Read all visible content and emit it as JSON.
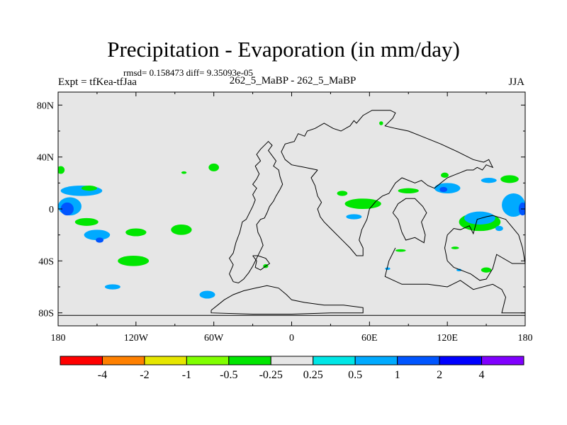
{
  "chart_data": {
    "type": "heatmap",
    "title": "Precipitation - Evaporation (in mm/day)",
    "stats_text": "rmsd= 0.158473 diff= 9.35093e-05",
    "experiment_text": "Expt = tfKea-tfJaa",
    "center_text": "262_5_MaBP - 262_5_MaBP",
    "season": "JJA",
    "xlim": [
      -180,
      180
    ],
    "ylim": [
      -90,
      90
    ],
    "x_ticks": [
      {
        "value": -180,
        "label": "180"
      },
      {
        "value": -120,
        "label": "120W"
      },
      {
        "value": -60,
        "label": "60W"
      },
      {
        "value": 0,
        "label": "0"
      },
      {
        "value": 60,
        "label": "60E"
      },
      {
        "value": 120,
        "label": "120E"
      },
      {
        "value": 180,
        "label": "180"
      }
    ],
    "y_ticks": [
      {
        "value": 80,
        "label": "80N"
      },
      {
        "value": 40,
        "label": "40N"
      },
      {
        "value": 0,
        "label": "0"
      },
      {
        "value": -40,
        "label": "40S"
      },
      {
        "value": -80,
        "label": "80S"
      }
    ],
    "colorbar": {
      "colors": [
        "#ff0000",
        "#ff8000",
        "#e6e600",
        "#80ff00",
        "#00e600",
        "#e6e6e6",
        "#00e6e6",
        "#00aaff",
        "#0055ff",
        "#0000ff",
        "#8000ff"
      ],
      "labels": [
        "-4",
        "-2",
        "-1",
        "-0.5",
        "-0.25",
        "0.25",
        "0.5",
        "1",
        "2",
        "4"
      ]
    },
    "background_color": "#e6e6e6",
    "anomaly_regions": [
      {
        "level": "-0.25",
        "lon": -178,
        "lat": 30,
        "rlon": 3,
        "rlat": 3
      },
      {
        "level": "0.5",
        "lon": -162,
        "lat": 14,
        "rlon": 16,
        "rlat": 4
      },
      {
        "level": "-0.25",
        "lon": -156,
        "lat": 16,
        "rlon": 6,
        "rlat": 2
      },
      {
        "level": "0.5",
        "lon": -171,
        "lat": 2,
        "rlon": 9,
        "rlat": 7
      },
      {
        "level": "1",
        "lon": -173,
        "lat": 0,
        "rlon": 5,
        "rlat": 5
      },
      {
        "level": "-0.25",
        "lon": -158,
        "lat": -10,
        "rlon": 9,
        "rlat": 3
      },
      {
        "level": "0.5",
        "lon": -150,
        "lat": -20,
        "rlon": 10,
        "rlat": 4
      },
      {
        "level": "1",
        "lon": -148,
        "lat": -24,
        "rlon": 3,
        "rlat": 2
      },
      {
        "level": "-0.25",
        "lon": -120,
        "lat": -18,
        "rlon": 8,
        "rlat": 3
      },
      {
        "level": "-0.25",
        "lon": -85,
        "lat": -16,
        "rlon": 8,
        "rlat": 4
      },
      {
        "level": "-0.25",
        "lon": -122,
        "lat": -40,
        "rlon": 12,
        "rlat": 4
      },
      {
        "level": "0.5",
        "lon": -138,
        "lat": -60,
        "rlon": 6,
        "rlat": 2
      },
      {
        "level": "0.5",
        "lon": -65,
        "lat": -66,
        "rlon": 6,
        "rlat": 3
      },
      {
        "level": "-0.25",
        "lon": -60,
        "lat": 32,
        "rlon": 4,
        "rlat": 3
      },
      {
        "level": "-0.25",
        "lon": -83,
        "lat": 28,
        "rlon": 2,
        "rlat": 1
      },
      {
        "level": "-0.25",
        "lon": -20,
        "lat": -44,
        "rlon": 2,
        "rlat": 1.5
      },
      {
        "level": "-0.25",
        "lon": 55,
        "lat": 4,
        "rlon": 14,
        "rlat": 4
      },
      {
        "level": "0.5",
        "lon": 48,
        "lat": -6,
        "rlon": 6,
        "rlat": 2
      },
      {
        "level": "-0.25",
        "lon": 39,
        "lat": 12,
        "rlon": 4,
        "rlat": 2
      },
      {
        "level": "-0.25",
        "lon": 90,
        "lat": 14,
        "rlon": 8,
        "rlat": 2
      },
      {
        "level": "0.5",
        "lon": 120,
        "lat": 16,
        "rlon": 10,
        "rlat": 4
      },
      {
        "level": "1",
        "lon": 117,
        "lat": 15,
        "rlon": 3,
        "rlat": 2
      },
      {
        "level": "-0.25",
        "lon": 118,
        "lat": 26,
        "rlon": 3,
        "rlat": 2
      },
      {
        "level": "0.5",
        "lon": 152,
        "lat": 22,
        "rlon": 6,
        "rlat": 2
      },
      {
        "level": "-0.25",
        "lon": 168,
        "lat": 23,
        "rlon": 7,
        "rlat": 3
      },
      {
        "level": "-0.25",
        "lon": 145,
        "lat": -10,
        "rlon": 16,
        "rlat": 7
      },
      {
        "level": "0.5",
        "lon": 145,
        "lat": -7,
        "rlon": 12,
        "rlat": 5
      },
      {
        "level": "0.5",
        "lon": 171,
        "lat": 3,
        "rlon": 9,
        "rlat": 9
      },
      {
        "level": "1",
        "lon": 178,
        "lat": 0,
        "rlon": 3,
        "rlat": 5
      },
      {
        "level": "0.5",
        "lon": 160,
        "lat": -15,
        "rlon": 3,
        "rlat": 2
      },
      {
        "level": "-0.25",
        "lon": 84,
        "lat": -32,
        "rlon": 4,
        "rlat": 1
      },
      {
        "level": "-0.25",
        "lon": 126,
        "lat": -30,
        "rlon": 3,
        "rlat": 1
      },
      {
        "level": "0.5",
        "lon": 74,
        "lat": -46,
        "rlon": 2,
        "rlat": 1
      },
      {
        "level": "0.5",
        "lon": 129,
        "lat": -47,
        "rlon": 2,
        "rlat": 1
      },
      {
        "level": "-0.25",
        "lon": 150,
        "lat": -47,
        "rlon": 4,
        "rlat": 2
      },
      {
        "level": "-0.25",
        "lon": 69,
        "lat": 66,
        "rlon": 1.5,
        "rlat": 1.5
      }
    ],
    "coastlines": [
      [
        [
          -45,
          -56
        ],
        [
          -48,
          -50
        ],
        [
          -45,
          -43
        ],
        [
          -48,
          -38
        ],
        [
          -45,
          -34
        ],
        [
          -43,
          -26
        ],
        [
          -40,
          -18
        ],
        [
          -38,
          -10
        ],
        [
          -35,
          -8
        ],
        [
          -33,
          -4
        ],
        [
          -30,
          2
        ],
        [
          -28,
          7
        ],
        [
          -30,
          11
        ],
        [
          -27,
          16
        ],
        [
          -30,
          19
        ],
        [
          -27,
          23
        ],
        [
          -25,
          27
        ],
        [
          -28,
          33
        ],
        [
          -24,
          37
        ],
        [
          -27,
          42
        ],
        [
          -24,
          46
        ],
        [
          -21,
          49
        ],
        [
          -18,
          52
        ],
        [
          -15,
          49
        ],
        [
          -18,
          45
        ],
        [
          -15,
          41
        ],
        [
          -12,
          37
        ],
        [
          -14,
          33
        ],
        [
          -10,
          30
        ],
        [
          -9,
          25
        ],
        [
          -7,
          19
        ],
        [
          -9,
          15
        ],
        [
          -12,
          10
        ],
        [
          -14,
          6
        ],
        [
          -17,
          2
        ],
        [
          -19,
          -3
        ],
        [
          -21,
          -7
        ],
        [
          -24,
          -8
        ],
        [
          -27,
          -12
        ],
        [
          -26,
          -18
        ],
        [
          -24,
          -22
        ],
        [
          -22,
          -28
        ],
        [
          -25,
          -34
        ],
        [
          -27,
          -38
        ],
        [
          -30,
          -44
        ],
        [
          -33,
          -49
        ],
        [
          -37,
          -54
        ],
        [
          -41,
          -57
        ],
        [
          -45,
          -56
        ]
      ],
      [
        [
          -30,
          -36
        ],
        [
          -27,
          -40
        ],
        [
          -28,
          -45
        ],
        [
          -24,
          -47
        ],
        [
          -20,
          -44
        ],
        [
          -17,
          -42
        ],
        [
          -20,
          -38
        ],
        [
          -26,
          -36
        ],
        [
          -30,
          -36
        ]
      ],
      [
        [
          -62,
          -78
        ],
        [
          -57,
          -74
        ],
        [
          -52,
          -70
        ],
        [
          -45,
          -66
        ],
        [
          -37,
          -63
        ],
        [
          -28,
          -61
        ],
        [
          -19,
          -59
        ],
        [
          -10,
          -61
        ],
        [
          -4,
          -66
        ],
        [
          0,
          -70
        ],
        [
          10,
          -72
        ],
        [
          25,
          -74
        ],
        [
          40,
          -74
        ],
        [
          55,
          -76
        ],
        [
          55,
          -80
        ],
        [
          30,
          -80
        ],
        [
          0,
          -81
        ],
        [
          -30,
          -81
        ],
        [
          -62,
          -80
        ],
        [
          -62,
          -78
        ]
      ],
      [
        [
          -180,
          -82
        ],
        [
          -100,
          -82
        ],
        [
          -40,
          -82
        ],
        [
          30,
          -82
        ],
        [
          180,
          -82
        ]
      ],
      [
        [
          20,
          30
        ],
        [
          15,
          24
        ],
        [
          18,
          18
        ],
        [
          20,
          10
        ],
        [
          23,
          5
        ],
        [
          20,
          0
        ],
        [
          22,
          -6
        ],
        [
          25,
          -10
        ],
        [
          30,
          -15
        ],
        [
          40,
          -25
        ],
        [
          45,
          -30
        ],
        [
          50,
          -36
        ],
        [
          55,
          -36
        ],
        [
          55,
          -30
        ],
        [
          52,
          -24
        ],
        [
          54,
          -16
        ],
        [
          58,
          -8
        ],
        [
          60,
          0
        ],
        [
          65,
          6
        ],
        [
          70,
          10
        ],
        [
          75,
          12
        ],
        [
          80,
          20
        ],
        [
          85,
          24
        ],
        [
          95,
          20
        ],
        [
          100,
          22
        ],
        [
          105,
          18
        ],
        [
          110,
          16
        ],
        [
          115,
          20
        ],
        [
          120,
          24
        ],
        [
          125,
          26
        ],
        [
          130,
          28
        ],
        [
          135,
          30
        ],
        [
          140,
          30
        ],
        [
          143,
          32
        ],
        [
          147,
          30
        ],
        [
          150,
          34
        ],
        [
          155,
          32
        ],
        [
          152,
          38
        ],
        [
          148,
          36
        ],
        [
          140,
          38
        ],
        [
          136,
          40
        ],
        [
          128,
          44
        ],
        [
          115,
          50
        ],
        [
          100,
          56
        ],
        [
          90,
          60
        ],
        [
          80,
          62
        ],
        [
          72,
          64
        ],
        [
          78,
          70
        ],
        [
          80,
          74
        ],
        [
          76,
          76
        ],
        [
          62,
          76
        ],
        [
          55,
          72
        ],
        [
          50,
          66
        ],
        [
          48,
          68
        ],
        [
          45,
          64
        ],
        [
          38,
          60
        ],
        [
          32,
          62
        ],
        [
          25,
          66
        ],
        [
          18,
          62
        ],
        [
          12,
          60
        ],
        [
          10,
          56
        ],
        [
          5,
          58
        ],
        [
          2,
          52
        ],
        [
          -5,
          50
        ],
        [
          -8,
          44
        ],
        [
          -5,
          38
        ],
        [
          0,
          34
        ],
        [
          10,
          32
        ],
        [
          20,
          30
        ]
      ],
      [
        [
          78,
          -3
        ],
        [
          82,
          -8
        ],
        [
          85,
          -18
        ],
        [
          88,
          -24
        ],
        [
          95,
          -22
        ],
        [
          102,
          -26
        ],
        [
          103,
          -20
        ],
        [
          100,
          -10
        ],
        [
          104,
          -3
        ],
        [
          101,
          2
        ],
        [
          95,
          8
        ],
        [
          88,
          8
        ],
        [
          82,
          4
        ],
        [
          78,
          -3
        ]
      ],
      [
        [
          80,
          -30
        ],
        [
          75,
          -40
        ],
        [
          72,
          -52
        ],
        [
          85,
          -58
        ],
        [
          105,
          -58
        ],
        [
          120,
          -60
        ],
        [
          130,
          -55
        ],
        [
          140,
          -62
        ],
        [
          155,
          -58
        ],
        [
          162,
          -62
        ],
        [
          165,
          -68
        ],
        [
          162,
          -80
        ],
        [
          180,
          -80
        ]
      ],
      [
        [
          180,
          -42
        ],
        [
          170,
          -42
        ],
        [
          158,
          -35
        ],
        [
          155,
          -46
        ],
        [
          150,
          -54
        ],
        [
          145,
          -55
        ],
        [
          138,
          -50
        ],
        [
          125,
          -45
        ],
        [
          120,
          -40
        ],
        [
          118,
          -30
        ],
        [
          120,
          -20
        ],
        [
          125,
          -15
        ],
        [
          130,
          -16
        ],
        [
          137,
          -13
        ],
        [
          140,
          -19
        ],
        [
          143,
          -8
        ],
        [
          150,
          -6
        ],
        [
          155,
          -5
        ],
        [
          165,
          -8
        ],
        [
          170,
          -14
        ],
        [
          175,
          -20
        ],
        [
          178,
          -30
        ],
        [
          180,
          -42
        ]
      ]
    ]
  }
}
